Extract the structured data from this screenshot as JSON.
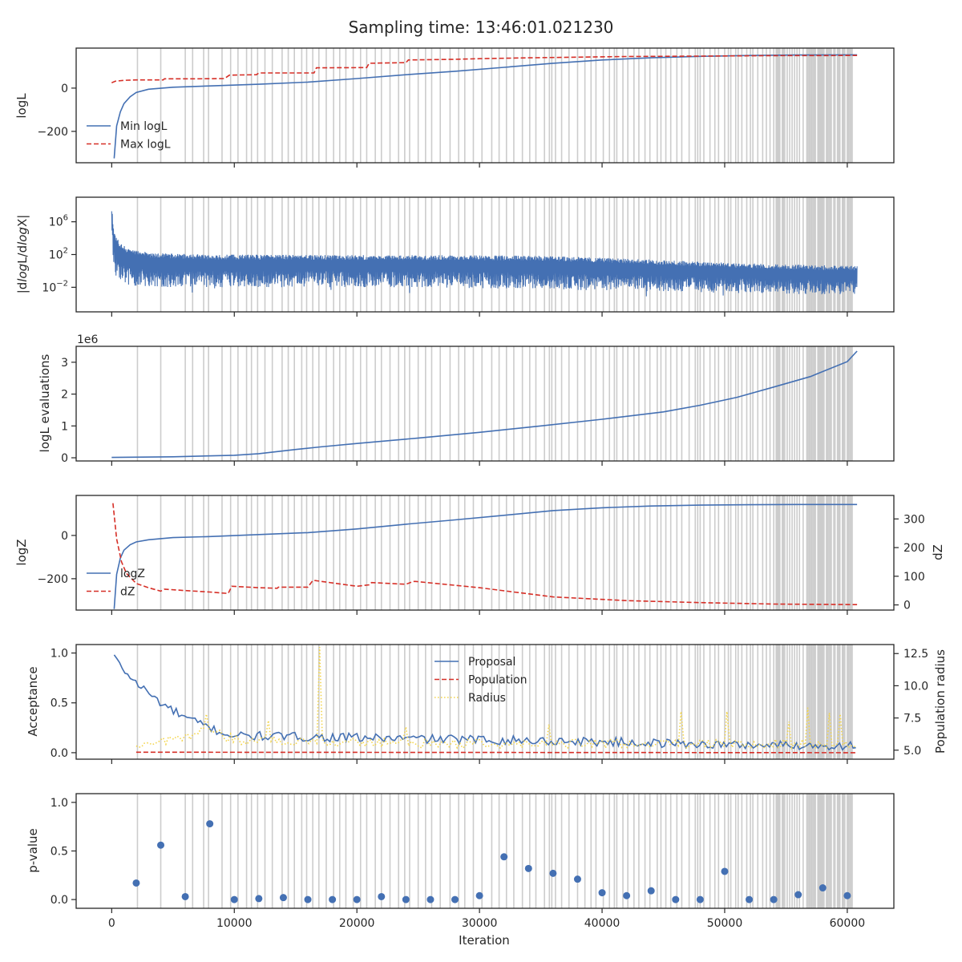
{
  "figure": {
    "title": "Sampling time: 13:46:01.021230",
    "xlabel": "Iteration"
  },
  "colors": {
    "blue": "#4470b3",
    "red": "#d62f27",
    "yellow": "#f3d44a",
    "insertion_lines": "#cccccc",
    "axes": "#262626"
  },
  "chart_data": [
    {
      "id": "logl",
      "type": "line",
      "ylabel": "logL",
      "xlim": [
        -2900,
        63800
      ],
      "ylim": [
        -345,
        185
      ],
      "yticks": [
        0,
        -200
      ],
      "ytick_labels": [
        "0",
        "−200"
      ],
      "legend": {
        "placement": "lower-left",
        "entries": [
          "Min logL",
          "Max logL"
        ]
      },
      "series": [
        {
          "name": "Min logL",
          "style": "solid",
          "x": [
            200,
            400,
            700,
            1000,
            1500,
            2000,
            3000,
            5000,
            8000,
            12000,
            16000,
            20000,
            24000,
            28000,
            32000,
            36000,
            40000,
            44000,
            48000,
            52000,
            56000,
            60800
          ],
          "y": [
            -325,
            -175,
            -110,
            -72,
            -40,
            -20,
            -5,
            4,
            10,
            18,
            28,
            44,
            62,
            78,
            96,
            115,
            130,
            140,
            147,
            151,
            153,
            154
          ]
        },
        {
          "name": "Max logL",
          "style": "dashed",
          "x": [
            0,
            300,
            1000,
            2000,
            4200,
            4300,
            7000,
            9200,
            9600,
            11800,
            12000,
            16500,
            16700,
            20800,
            21000,
            24000,
            24200,
            28000,
            30000,
            34000,
            38000,
            42000,
            48000,
            54000,
            60800
          ],
          "y": [
            25,
            32,
            36,
            38,
            38,
            43,
            43,
            44,
            60,
            62,
            70,
            70,
            94,
            95,
            115,
            118,
            130,
            133,
            136,
            140,
            143,
            146,
            148,
            150,
            151
          ]
        }
      ]
    },
    {
      "id": "dlogl",
      "type": "line",
      "ylabel": "|dlogL/dlogX|",
      "yscale": "log",
      "xlim": [
        -2900,
        63800
      ],
      "ylim": [
        1e-05,
        1000000000
      ],
      "yticks": [
        1000000,
        100,
        0.01
      ],
      "ytick_labels": [
        "10^6",
        "10^2",
        "10^-2"
      ],
      "series": [
        {
          "name": "",
          "style": "noisy-band",
          "x": [
            0,
            100,
            300,
            600,
            1200,
            3000,
            8000,
            15000,
            22000,
            29000,
            35000,
            40000,
            45000,
            50000,
            55000,
            60800
          ],
          "upper": [
            20000000,
            200000,
            20000,
            3000,
            500,
            150,
            100,
            90,
            85,
            80,
            70,
            40,
            20,
            10,
            6,
            4
          ],
          "lower": [
            10000,
            1,
            0.3,
            0.05,
            0.02,
            0.01,
            0.01,
            0.01,
            0.01,
            0.008,
            0.006,
            0.004,
            0.003,
            0.002,
            0.0015,
            0.001
          ],
          "spike_min": 0.0003
        }
      ]
    },
    {
      "id": "evaluations",
      "type": "line",
      "ylabel": "logL evaluations",
      "offset_text": "1e6",
      "xlim": [
        -2900,
        63800
      ],
      "ylim": [
        -100000,
        3500000
      ],
      "yticks": [
        0,
        1000000,
        2000000,
        3000000
      ],
      "ytick_labels": [
        "0",
        "1",
        "2",
        "3"
      ],
      "series": [
        {
          "name": "",
          "style": "solid",
          "x": [
            0,
            5000,
            10000,
            12000,
            15000,
            17000,
            20000,
            25000,
            30000,
            35000,
            40000,
            45000,
            48000,
            51000,
            54000,
            57000,
            60000,
            60800
          ],
          "y": [
            10000,
            30000,
            80000,
            130000,
            260000,
            340000,
            450000,
            620000,
            800000,
            1000000,
            1210000,
            1440000,
            1650000,
            1900000,
            2220000,
            2550000,
            3020000,
            3350000
          ]
        }
      ]
    },
    {
      "id": "logz",
      "type": "line",
      "ylabel": "logZ",
      "ylabel_right": "dZ",
      "xlim": [
        -2900,
        63800
      ],
      "ylim": [
        -345,
        185
      ],
      "yticks": [
        0,
        -200
      ],
      "ytick_labels": [
        "0",
        "−200"
      ],
      "ylim_right": [
        -18,
        382
      ],
      "yticks_right": [
        0,
        100,
        200,
        300
      ],
      "ytick_labels_right": [
        "0",
        "100",
        "200",
        "300"
      ],
      "legend": {
        "placement": "lower-left",
        "entries": [
          "logZ",
          "dZ"
        ]
      },
      "series": [
        {
          "name": "logZ",
          "style": "solid",
          "axis": "left",
          "x": [
            200,
            400,
            700,
            1000,
            1500,
            2000,
            3000,
            5000,
            8000,
            12000,
            16000,
            20000,
            24000,
            28000,
            32000,
            36000,
            40000,
            44000,
            48000,
            52000,
            56000,
            60800
          ],
          "y": [
            -340,
            -180,
            -105,
            -68,
            -43,
            -30,
            -20,
            -10,
            -5,
            4,
            13,
            30,
            52,
            72,
            93,
            115,
            128,
            136,
            140,
            142,
            143,
            143
          ]
        },
        {
          "name": "dZ",
          "style": "dashed",
          "axis": "right",
          "x": [
            100,
            400,
            800,
            1200,
            2000,
            3000,
            4000,
            4300,
            6000,
            8000,
            9500,
            9800,
            12000,
            13500,
            13600,
            16000,
            16400,
            16600,
            20000,
            21000,
            21200,
            24000,
            24600,
            24800,
            30000,
            36000,
            42000,
            48000,
            54000,
            60800
          ],
          "y": [
            355,
            230,
            150,
            110,
            75,
            60,
            48,
            55,
            50,
            45,
            40,
            65,
            60,
            58,
            62,
            62,
            85,
            85,
            65,
            70,
            78,
            72,
            82,
            82,
            60,
            28,
            15,
            8,
            3,
            1
          ]
        }
      ]
    },
    {
      "id": "acceptance",
      "type": "line",
      "ylabel": "Acceptance",
      "ylabel_right": "Population radius",
      "xlim": [
        -2900,
        63800
      ],
      "ylim": [
        -0.065,
        1.085
      ],
      "yticks": [
        0,
        0.5,
        1.0
      ],
      "ytick_labels": [
        "0.0",
        "0.5",
        "1.0"
      ],
      "ylim_right": [
        4.3,
        13.2
      ],
      "yticks_right": [
        5.0,
        7.5,
        10.0,
        12.5
      ],
      "ytick_labels_right": [
        "5.0",
        "7.5",
        "10.0",
        "12.5"
      ],
      "legend": {
        "placement": "upper-center",
        "entries": [
          "Proposal",
          "Population",
          "Radius"
        ]
      },
      "series": [
        {
          "name": "Proposal",
          "style": "solid",
          "axis": "left",
          "x": [
            200,
            1000,
            2000,
            3000,
            4000,
            5000,
            6000,
            7000,
            8000,
            9000,
            10000,
            20000,
            30000,
            40000,
            50000,
            60800
          ],
          "y": [
            0.98,
            0.82,
            0.7,
            0.6,
            0.5,
            0.42,
            0.35,
            0.3,
            0.25,
            0.2,
            0.17,
            0.15,
            0.13,
            0.11,
            0.08,
            0.07
          ],
          "noise": 0.045
        },
        {
          "name": "Population",
          "style": "dashed",
          "axis": "left",
          "x": [
            2000,
            60800
          ],
          "y": [
            0.005,
            0.0
          ]
        },
        {
          "name": "Radius",
          "style": "dotted",
          "axis": "right",
          "x": [
            2000,
            4000,
            6000,
            8000,
            9000,
            10000,
            20000,
            30000,
            40000,
            50000,
            60800
          ],
          "y": [
            5.3,
            5.6,
            6.0,
            6.6,
            6.2,
            5.8,
            5.6,
            5.5,
            5.5,
            5.5,
            5.5
          ],
          "noise": 0.35,
          "spikes": [
            [
              7700,
              7.8
            ],
            [
              12700,
              7.3
            ],
            [
              16950,
              13.0
            ],
            [
              24000,
              6.8
            ],
            [
              35600,
              7.0
            ],
            [
              46500,
              8.0
            ],
            [
              50100,
              8.0
            ],
            [
              55300,
              7.2
            ],
            [
              56700,
              8.3
            ],
            [
              58600,
              7.9
            ],
            [
              59500,
              7.8
            ]
          ]
        }
      ]
    },
    {
      "id": "pvalue",
      "type": "scatter",
      "ylabel": "p-value",
      "xlabel": "Iteration",
      "xlim": [
        -2900,
        63800
      ],
      "ylim": [
        -0.09,
        1.09
      ],
      "yticks": [
        0,
        0.5,
        1.0
      ],
      "ytick_labels": [
        "0.0",
        "0.5",
        "1.0"
      ],
      "xticks": [
        0,
        10000,
        20000,
        30000,
        40000,
        50000,
        60000
      ],
      "xtick_labels": [
        "0",
        "10000",
        "20000",
        "30000",
        "40000",
        "50000",
        "60000"
      ],
      "series": [
        {
          "name": "",
          "style": "markers",
          "x": [
            2000,
            4000,
            6000,
            8000,
            10000,
            12000,
            14000,
            16000,
            18000,
            20000,
            22000,
            24000,
            26000,
            28000,
            30000,
            32000,
            34000,
            36000,
            38000,
            40000,
            42000,
            44000,
            46000,
            48000,
            50000,
            52000,
            54000,
            56000,
            58000,
            60000
          ],
          "y": [
            0.17,
            0.56,
            0.03,
            0.78,
            0.0,
            0.01,
            0.02,
            0.0,
            0.0,
            0.0,
            0.03,
            0.0,
            0.0,
            0.0,
            0.04,
            0.44,
            0.32,
            0.27,
            0.21,
            0.07,
            0.04,
            0.09,
            0.0,
            0.0,
            0.29,
            0.0,
            0.0,
            0.05,
            0.12,
            0.04
          ]
        }
      ]
    }
  ],
  "insertion_iterations": [
    2100,
    4000,
    6000,
    6600,
    7500,
    7900,
    9000,
    9700,
    10300,
    11000,
    11400,
    11900,
    12500,
    13100,
    13900,
    14400,
    14900,
    15500,
    15900,
    16400,
    16900,
    17500,
    18100,
    18600,
    19100,
    19700,
    20300,
    20800,
    21500,
    22000,
    22700,
    23400,
    23900,
    24300,
    25000,
    25600,
    26100,
    26800,
    27600,
    28300,
    28800,
    29500,
    30200,
    31000,
    31600,
    32200,
    32800,
    33500,
    34100,
    34600,
    35300,
    35700,
    35900,
    36200,
    36700,
    37300,
    38000,
    38600,
    39100,
    39500,
    40100,
    40600,
    41000,
    41200,
    41700,
    42100,
    42600,
    43000,
    43500,
    43900,
    44500,
    44800,
    45200,
    45600,
    46100,
    46500,
    47100,
    47600,
    47800,
    48000,
    48300,
    48800,
    49200,
    49500,
    50000,
    50300,
    50500,
    50900,
    51100,
    51400,
    51800,
    52100,
    52300,
    52700,
    53100,
    53400,
    53700,
    54000,
    54200,
    54300,
    54400,
    54500,
    54700,
    54800,
    54900,
    55100,
    55300,
    55500,
    55700,
    55900,
    56100,
    56400,
    56700,
    56800,
    56900,
    57000,
    57100,
    57200,
    57300,
    57400,
    57600,
    57700,
    57800,
    57900,
    58000,
    58100,
    58300,
    58400,
    58500,
    58600,
    58700,
    58900,
    59000,
    59200,
    59300,
    59400,
    59600,
    59700,
    59800,
    60000,
    60100,
    60200,
    60300,
    60400
  ]
}
